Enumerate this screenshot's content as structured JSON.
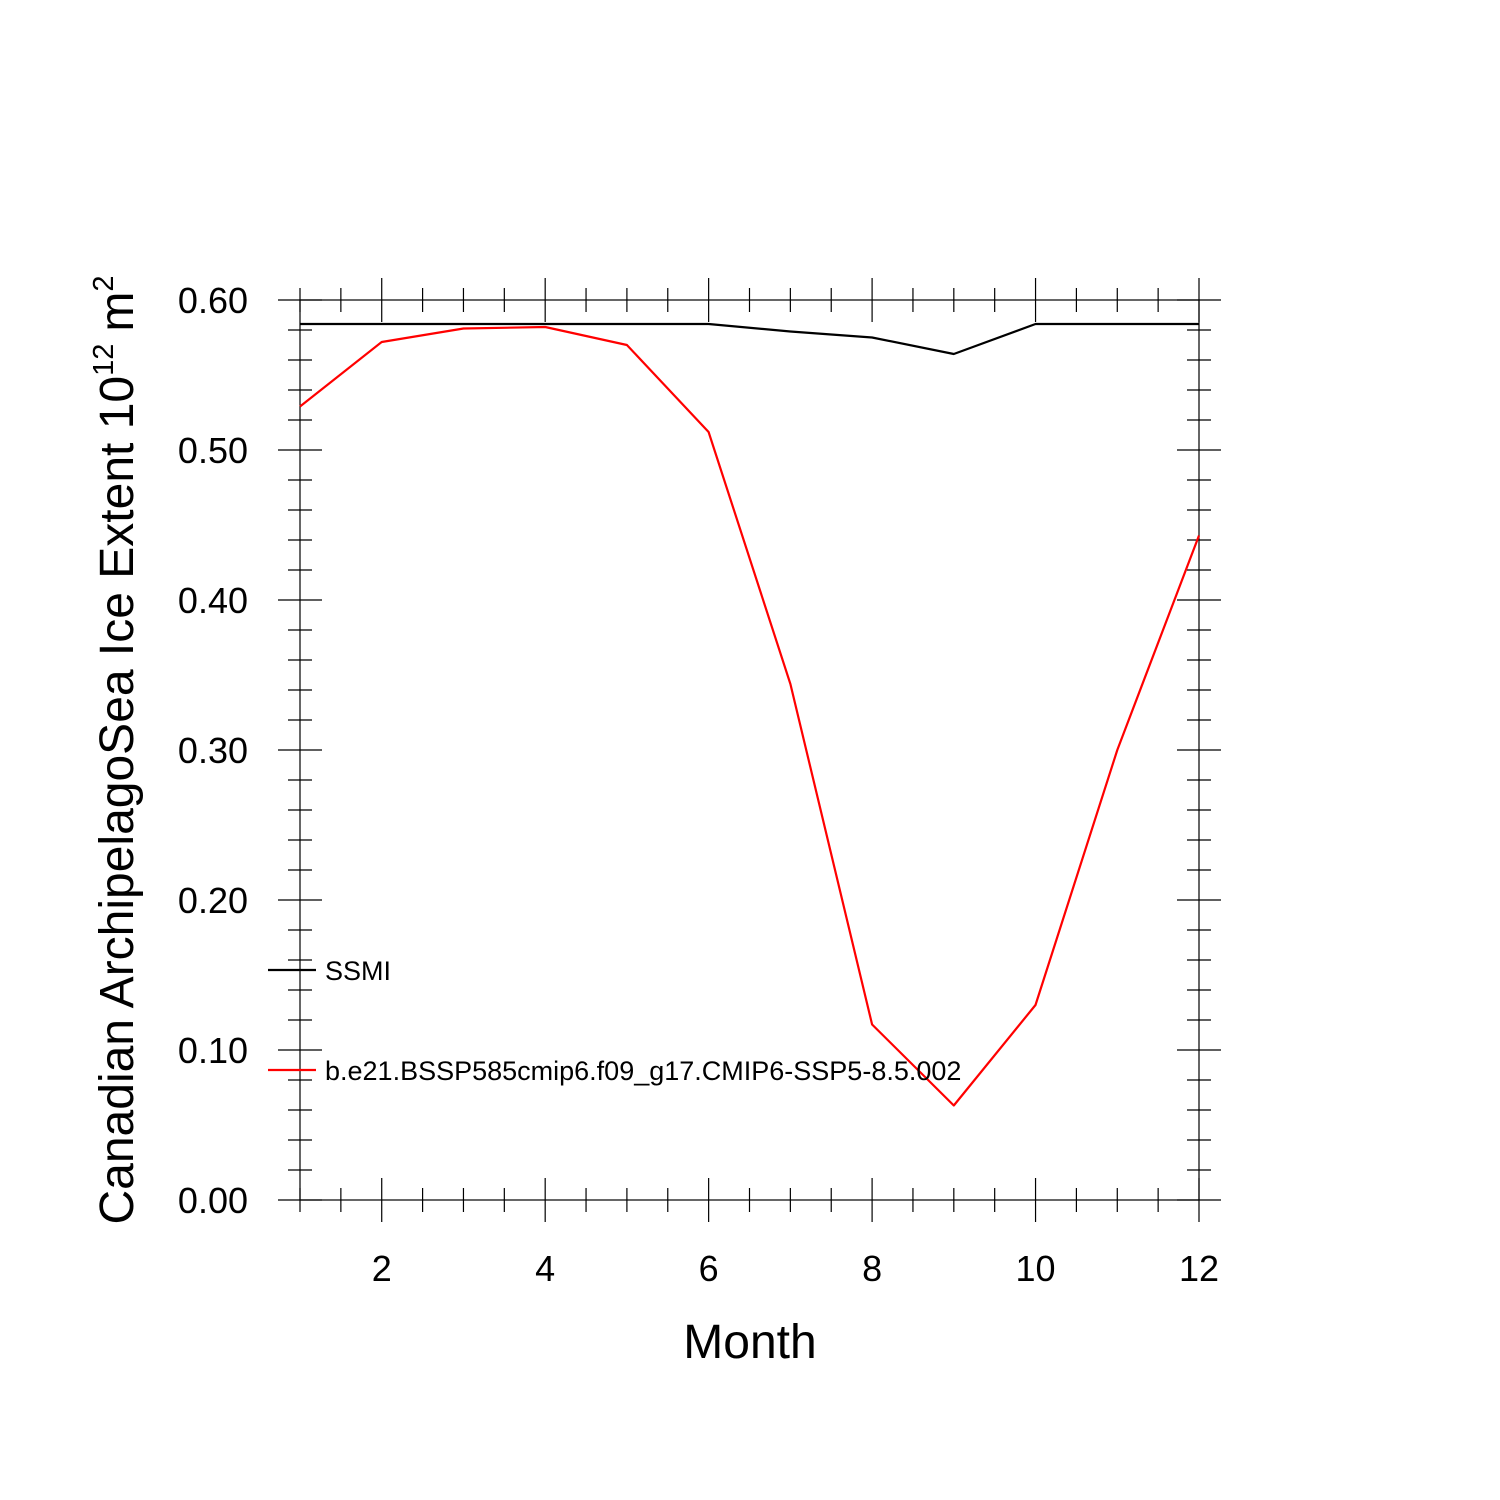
{
  "chart_data": {
    "type": "line",
    "xlabel": "Month",
    "ylabel": {
      "text": "Canadian ArchipelagoSea Ice Extent 10",
      "exponent": "12",
      "unit": "m",
      "unit_exponent": "2"
    },
    "xlim": [
      1,
      12
    ],
    "ylim": [
      0.0,
      0.6
    ],
    "x_major_ticks": [
      2,
      4,
      6,
      8,
      10,
      12
    ],
    "x_minor_step": 0.5,
    "y_major_ticks": [
      0.0,
      0.1,
      0.2,
      0.3,
      0.4,
      0.5,
      0.6
    ],
    "y_tick_labels": [
      "0.00",
      "0.10",
      "0.20",
      "0.30",
      "0.40",
      "0.50",
      "0.60"
    ],
    "y_minor_step": 0.02,
    "grid": false,
    "legend_position": "lower-left, inside",
    "x": [
      1,
      2,
      3,
      4,
      5,
      6,
      7,
      8,
      9,
      10,
      11,
      12
    ],
    "series": [
      {
        "name": "SSMI",
        "color": "#000000",
        "values": [
          0.584,
          0.584,
          0.584,
          0.584,
          0.584,
          0.584,
          0.579,
          0.575,
          0.564,
          0.584,
          0.584,
          0.584
        ]
      },
      {
        "name": "b.e21.BSSP585cmip6.f09_g17.CMIP6-SSP5-8.5.002",
        "color": "#ff0000",
        "values": [
          0.529,
          0.572,
          0.581,
          0.582,
          0.57,
          0.512,
          0.344,
          0.117,
          0.063,
          0.13,
          0.3,
          0.443
        ]
      }
    ]
  }
}
